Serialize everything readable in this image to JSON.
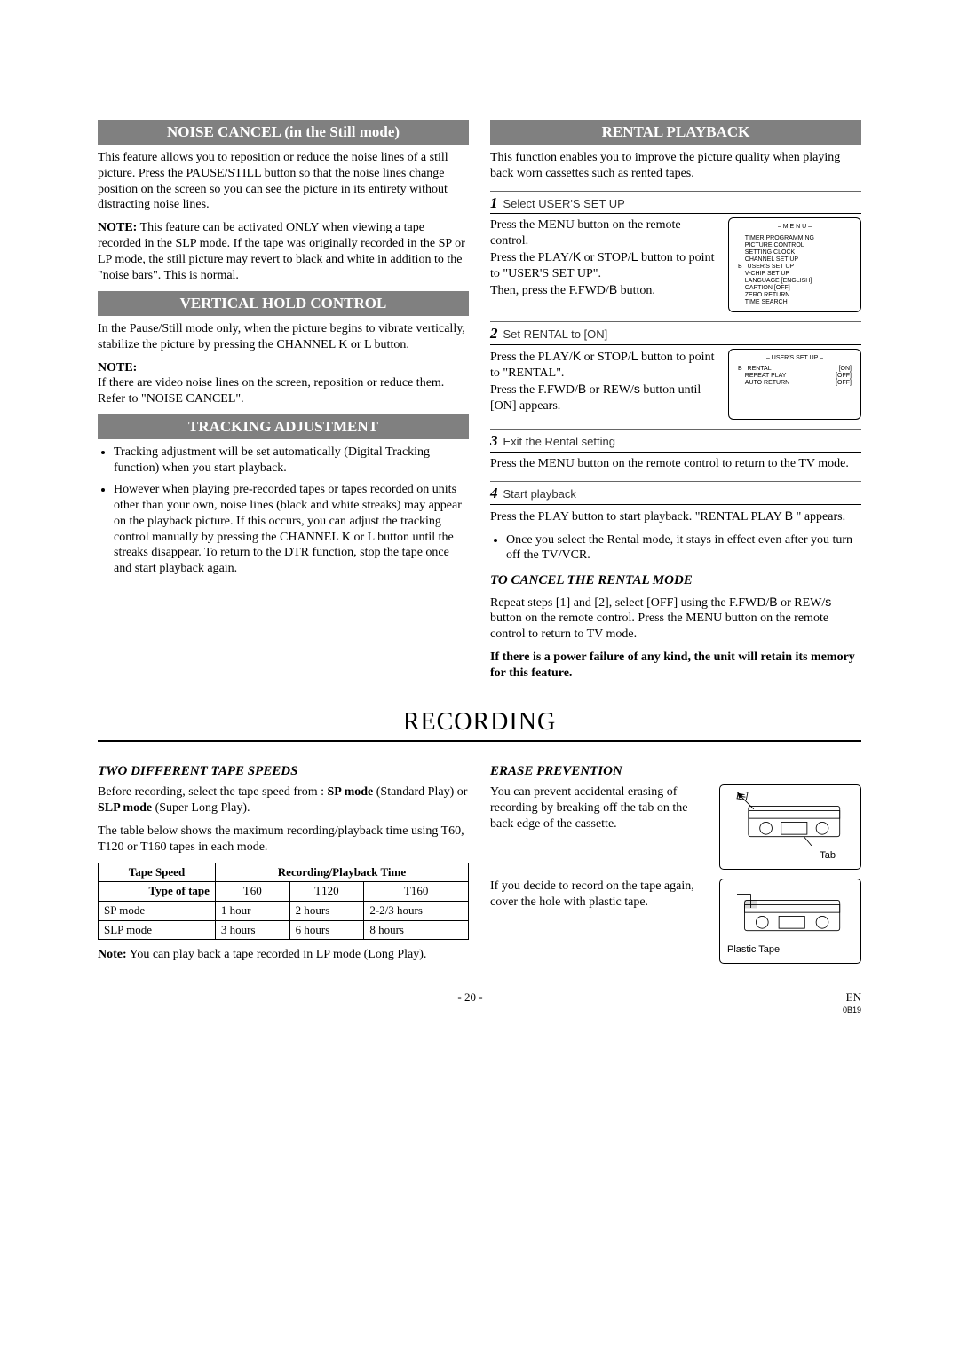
{
  "sections": {
    "noise_cancel": {
      "title": "NOISE CANCEL (in the Still mode)",
      "para1": "This feature allows you to reposition or reduce the noise lines of a still picture. Press the PAUSE/STILL button so that the noise lines change position on the screen so you can see the picture in its entirety without distracting noise lines.",
      "note_label": "NOTE:",
      "note_text": " This feature can be activated ONLY when viewing a tape recorded in the SLP mode. If the tape was originally recorded in the SP or LP mode, the still picture may revert to black and white in addition to the \"noise bars\". This is normal."
    },
    "vertical_hold": {
      "title": "VERTICAL HOLD CONTROL",
      "para1": "In the Pause/Still mode only, when the picture begins to vibrate vertically, stabilize the picture by pressing the CHANNEL K or L button.",
      "note_label": "NOTE:",
      "note_text": "If there are video noise lines on the screen, reposition or reduce them. Refer to \"NOISE CANCEL\"."
    },
    "tracking": {
      "title": "TRACKING ADJUSTMENT",
      "b1": "Tracking adjustment will be set automatically (Digital Tracking function) when you start playback.",
      "b2": "However when playing pre-recorded tapes or tapes recorded on units other than your own, noise lines (black and white streaks) may appear on the playback picture. If this occurs, you can adjust the tracking control manually by pressing the CHANNEL K or L button until the streaks disappear. To return to the DTR function, stop the tape once and start playback again."
    },
    "rental": {
      "title": "RENTAL PLAYBACK",
      "intro": "This function enables you to improve the picture quality when playing back worn cassettes such as rented tapes.",
      "step1_label": "Select USER'S SET UP",
      "step1_text": "Press the MENU button on the remote control.\nPress the PLAY/K or STOP/L button to point to \"USER'S SET UP\".\nThen, press the F.FWD/B button.",
      "step2_label": "Set RENTAL to [ON]",
      "step2_text": "Press the PLAY/K or STOP/L button to point to \"RENTAL\".\nPress the F.FWD/B or REW/s button until [ON] appears.",
      "step3_label": "Exit the Rental setting",
      "step3_text": "Press the MENU button on the remote control to return to the TV mode.",
      "step4_label": "Start playback",
      "step4_text": "Press the PLAY button to start playback. \"RENTAL PLAY B \" appears.",
      "step4_bullet": "Once you select the Rental mode, it stays in effect even after you turn off the TV/VCR.",
      "cancel_head": "TO CANCEL THE RENTAL MODE",
      "cancel_text": "Repeat steps [1] and [2], select [OFF] using the F.FWD/B or REW/s button on the remote control. Press the MENU button on the remote control to return to TV mode.",
      "cancel_bold": "If there is a power failure of any kind, the unit will retain its memory for this feature.",
      "lcd1": {
        "title": "– M E N U –",
        "rows": [
          "TIMER PROGRAMMING",
          "PICTURE CONTROL",
          "SETTING CLOCK",
          "CHANNEL SET UP",
          "USER'S SET UP",
          "V-CHIP SET UP",
          "LANGUAGE  [ENGLISH]",
          "CAPTION  [OFF]",
          "ZERO RETURN",
          "TIME SEARCH"
        ],
        "pointer_row": 4
      },
      "lcd2": {
        "title": "– USER'S SET UP –",
        "rows": [
          [
            "RENTAL",
            "[ON]"
          ],
          [
            "REPEAT PLAY",
            "[OFF]"
          ],
          [
            "AUTO RETURN",
            "[OFF]"
          ]
        ],
        "pointer_row": 0
      }
    },
    "recording": {
      "title": "RECORDING",
      "speeds_head": "TWO DIFFERENT TAPE SPEEDS",
      "speeds_p1a": "Before recording, select the tape speed from : ",
      "speeds_p1b": "SP mode",
      "speeds_p1c": " (Standard Play) or ",
      "speeds_p1d": "SLP mode",
      "speeds_p1e": " (Super Long Play).",
      "speeds_p2": "The table below shows the maximum recording/playback time using T60, T120 or T160 tapes in each mode.",
      "table": {
        "h1": "Tape Speed",
        "h2": "Recording/Playback Time",
        "sub": "Type of tape",
        "cols": [
          "T60",
          "T120",
          "T160"
        ],
        "rows": [
          [
            "SP mode",
            "1 hour",
            "2 hours",
            "2-2/3 hours"
          ],
          [
            "SLP mode",
            "3 hours",
            "6 hours",
            "8 hours"
          ]
        ]
      },
      "note_label": "Note:",
      "note": " You can play back a tape recorded in LP mode (Long Play).",
      "erase_head": "ERASE PREVENTION",
      "erase_p1": "You can prevent accidental erasing of recording by breaking off the tab on the back edge of the cassette.",
      "erase_tab": "Tab",
      "erase_p2": "If you decide to record on the tape again, cover the hole with plastic tape.",
      "erase_tape": "Plastic Tape"
    }
  },
  "footer": {
    "page": "- 20 -",
    "lang": "EN",
    "code": "0B19"
  }
}
